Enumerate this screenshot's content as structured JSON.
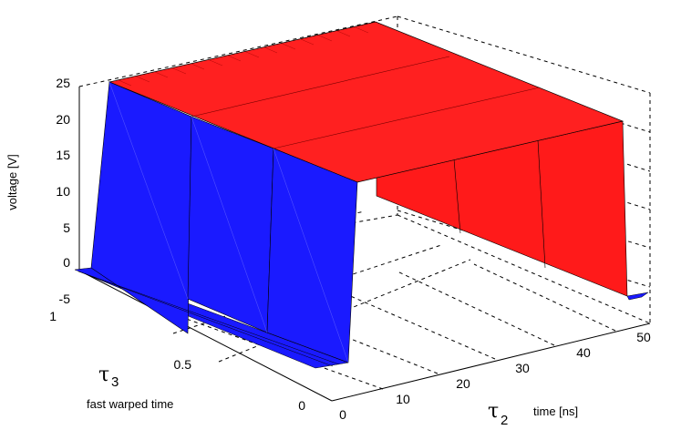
{
  "chart_data": {
    "type": "surface",
    "zlabel": "voltage [V]",
    "x_axis": {
      "symbol": "τ",
      "subscript": "2",
      "label": "time [ns]",
      "ticks": [
        "0",
        "10",
        "20",
        "30",
        "40",
        "50"
      ]
    },
    "y_axis": {
      "symbol": "τ",
      "subscript": "3",
      "label": "fast warped time",
      "ticks": [
        "0",
        "0.5",
        "1"
      ]
    },
    "z_axis": {
      "ticks": [
        "-5",
        "0",
        "5",
        "10",
        "15",
        "20",
        "25"
      ]
    },
    "zlim": [
      -5,
      25
    ],
    "surface": {
      "low_level": -1,
      "high_level": 25,
      "rise_times_at_tau3_1": [
        4,
        15,
        26,
        37
      ],
      "fall_times_at_tau3_1": [
        18,
        29,
        40,
        51
      ],
      "colors": {
        "low_and_rising": "#0000ff",
        "high_and_falling": "#ff0000"
      }
    }
  }
}
